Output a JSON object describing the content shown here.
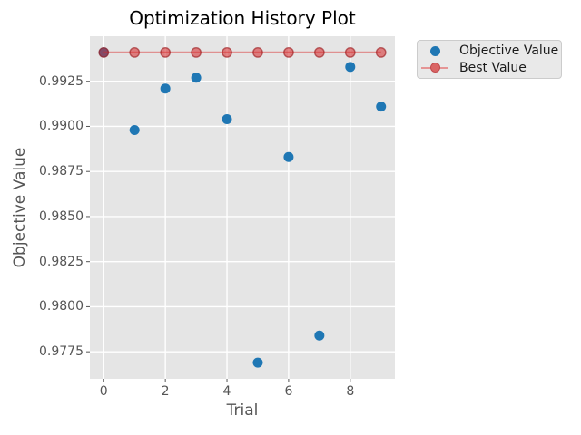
{
  "chart_data": {
    "type": "scatter",
    "title": "Optimization History Plot",
    "xlabel": "Trial",
    "ylabel": "Objective Value",
    "x": [
      0,
      1,
      2,
      3,
      4,
      5,
      6,
      7,
      8,
      9
    ],
    "series": [
      {
        "name": "Objective Value",
        "style": "scatter",
        "color": "#1f77b4",
        "values": [
          0.9941,
          0.9898,
          0.9921,
          0.9927,
          0.9904,
          0.9769,
          0.9883,
          0.9784,
          0.9933,
          0.9911
        ]
      },
      {
        "name": "Best Value",
        "style": "line+marker",
        "color": "#d62728",
        "values": [
          0.9941,
          0.9941,
          0.9941,
          0.9941,
          0.9941,
          0.9941,
          0.9941,
          0.9941,
          0.9941,
          0.9941
        ]
      }
    ],
    "xtick_labels": [
      "0",
      "2",
      "4",
      "6",
      "8"
    ],
    "ytick_labels": [
      "0.9925",
      "0.9900",
      "0.9875",
      "0.9850",
      "0.9825",
      "0.9800",
      "0.9775"
    ],
    "xlim": [
      -0.45,
      9.45
    ],
    "ylim": [
      0.976,
      0.995
    ],
    "grid": true,
    "legend_position": "outside-top-right",
    "plot_bg_color": "#e5e5e5",
    "grid_color": "#ffffff",
    "tick_color": "#555555"
  }
}
